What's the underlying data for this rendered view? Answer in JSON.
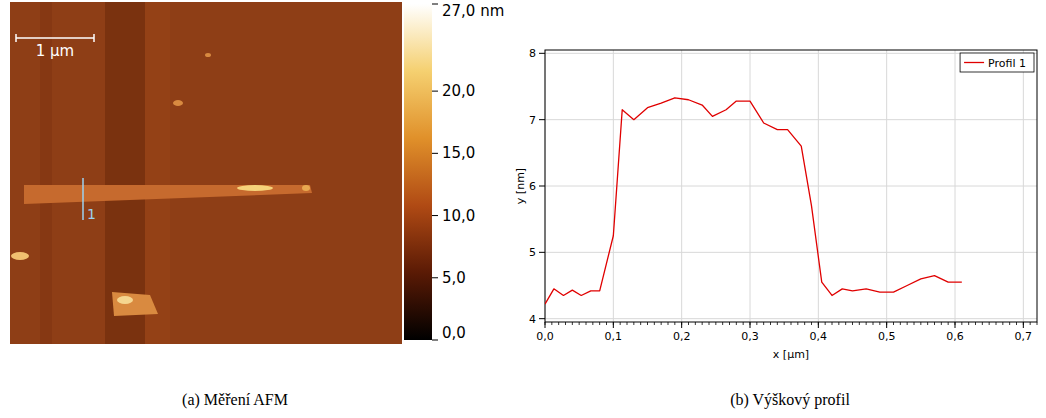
{
  "chart_data": [
    {
      "type": "image",
      "caption": "(a) Měření AFM",
      "scale_bar": "1 µm",
      "profile_label": "1",
      "colorbar": {
        "range": [
          0,
          27
        ],
        "ticks": [
          {
            "value": 0,
            "label": "0,0"
          },
          {
            "value": 5,
            "label": "5,0"
          },
          {
            "value": 10,
            "label": "10,0"
          },
          {
            "value": 15,
            "label": "15,0"
          },
          {
            "value": 20,
            "label": "20,0"
          },
          {
            "value": 27,
            "label": "27,0 nm"
          }
        ]
      }
    },
    {
      "type": "line",
      "caption": "(b) Výškový profil",
      "x_label": "x [µm]",
      "y_label": "y [nm]",
      "xlim": [
        0,
        0.72
      ],
      "ylim": [
        3.95,
        8.05
      ],
      "xticks": [
        {
          "value": 0,
          "label": "0,0"
        },
        {
          "value": 0.1,
          "label": "0,1"
        },
        {
          "value": 0.2,
          "label": "0,2"
        },
        {
          "value": 0.3,
          "label": "0,3"
        },
        {
          "value": 0.4,
          "label": "0,4"
        },
        {
          "value": 0.5,
          "label": "0,5"
        },
        {
          "value": 0.6,
          "label": "0,6"
        },
        {
          "value": 0.7,
          "label": "0,7"
        }
      ],
      "yticks": [
        4,
        5,
        6,
        7,
        8
      ],
      "grid": true,
      "legend": "top-right",
      "series": [
        {
          "name": "Profil 1",
          "color": "#e00000",
          "x": [
            0.0,
            0.013,
            0.027,
            0.04,
            0.053,
            0.067,
            0.08,
            0.1,
            0.113,
            0.13,
            0.15,
            0.17,
            0.19,
            0.21,
            0.23,
            0.245,
            0.265,
            0.28,
            0.3,
            0.32,
            0.34,
            0.355,
            0.375,
            0.39,
            0.405,
            0.42,
            0.435,
            0.45,
            0.47,
            0.49,
            0.51,
            0.53,
            0.55,
            0.57,
            0.59,
            0.61
          ],
          "values": [
            4.22,
            4.45,
            4.35,
            4.43,
            4.35,
            4.42,
            4.42,
            5.25,
            7.15,
            7.0,
            7.18,
            7.25,
            7.33,
            7.3,
            7.22,
            7.05,
            7.15,
            7.28,
            7.28,
            6.95,
            6.85,
            6.85,
            6.6,
            5.7,
            4.55,
            4.35,
            4.45,
            4.42,
            4.45,
            4.4,
            4.4,
            4.5,
            4.6,
            4.65,
            4.55,
            4.55
          ]
        }
      ]
    }
  ]
}
